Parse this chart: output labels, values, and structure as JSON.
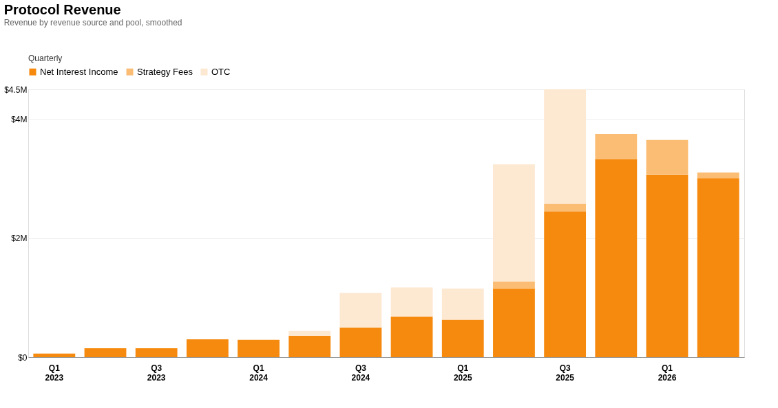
{
  "chart_data": {
    "type": "bar",
    "title": "Protocol Revenue",
    "subtitle": "Revenue by revenue source and pool, smoothed",
    "annotations": [
      "Quarterly"
    ],
    "categories": [
      "Q1 2023",
      null,
      "Q3 2023",
      null,
      "Q1 2024",
      null,
      "Q3 2024",
      null,
      "Q1 2025",
      null,
      "Q3 2025",
      null,
      "Q1 2026",
      null
    ],
    "stacked": true,
    "legend": "top",
    "grid": "y",
    "ylim": [
      0,
      4.5
    ],
    "yticks": [
      {
        "value": 0,
        "label": "$0"
      },
      {
        "value": 2,
        "label": "$2M"
      },
      {
        "value": 4,
        "label": "$4M"
      },
      {
        "value": 4.5,
        "label": "$4.5M"
      }
    ],
    "series": [
      {
        "name": "Net Interest Income",
        "color": "#f68a0e",
        "values": [
          0.06,
          0.15,
          0.15,
          0.3,
          0.29,
          0.36,
          0.5,
          0.68,
          0.63,
          1.15,
          2.45,
          3.33,
          3.06,
          3.01
        ]
      },
      {
        "name": "Strategy Fees",
        "color": "#fbbd74",
        "values": [
          0,
          0,
          0,
          0,
          0,
          0,
          0,
          0,
          0,
          0.12,
          0.13,
          0.42,
          0.59,
          0.09
        ]
      },
      {
        "name": "OTC",
        "color": "#fde8d2",
        "values": [
          0,
          0,
          0,
          0,
          0,
          0.08,
          0.58,
          0.49,
          0.52,
          1.97,
          1.92,
          0,
          0,
          0
        ]
      }
    ]
  }
}
